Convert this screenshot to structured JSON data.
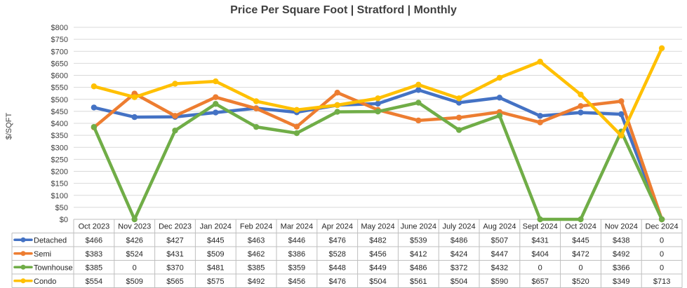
{
  "chart_data": {
    "type": "line",
    "title": "Price Per Square Foot | Stratford | Monthly",
    "ylabel": "$/SQFT",
    "xlabel": "",
    "ylim": [
      0,
      800
    ],
    "y_ticks": [
      "$0",
      "$50",
      "$100",
      "$150",
      "$200",
      "$250",
      "$300",
      "$350",
      "$400",
      "$450",
      "$500",
      "$550",
      "$600",
      "$650",
      "$700",
      "$750",
      "$800"
    ],
    "categories": [
      "Oct 2023",
      "Nov 2023",
      "Dec 2023",
      "Jan 2024",
      "Feb 2024",
      "Mar 2024",
      "Apr 2024",
      "May 2024",
      "June 2024",
      "July 2024",
      "Aug 2024",
      "Sept 2024",
      "Oct 2024",
      "Nov 2024",
      "Dec 2024"
    ],
    "grid": true,
    "legend": "data-table",
    "series": [
      {
        "name": "Detached",
        "color": "#4472C4",
        "values": [
          466,
          426,
          427,
          445,
          463,
          446,
          476,
          482,
          539,
          486,
          507,
          431,
          445,
          438,
          0
        ],
        "labels": [
          "$466",
          "$426",
          "$427",
          "$445",
          "$463",
          "$446",
          "$476",
          "$482",
          "$539",
          "$486",
          "$507",
          "$431",
          "$445",
          "$438",
          "0"
        ]
      },
      {
        "name": "Semi",
        "color": "#ED7D31",
        "values": [
          383,
          524,
          431,
          509,
          462,
          386,
          528,
          456,
          412,
          424,
          447,
          404,
          472,
          492,
          0
        ],
        "labels": [
          "$383",
          "$524",
          "$431",
          "$509",
          "$462",
          "$386",
          "$528",
          "$456",
          "$412",
          "$424",
          "$447",
          "$404",
          "$472",
          "$492",
          "0"
        ]
      },
      {
        "name": "Townhouse",
        "color": "#70AD47",
        "values": [
          385,
          0,
          370,
          481,
          385,
          359,
          448,
          449,
          486,
          372,
          432,
          0,
          0,
          366,
          0
        ],
        "labels": [
          "$385",
          "0",
          "$370",
          "$481",
          "$385",
          "$359",
          "$448",
          "$449",
          "$486",
          "$372",
          "$432",
          "0",
          "0",
          "$366",
          "0"
        ]
      },
      {
        "name": "Condo",
        "color": "#FFC000",
        "values": [
          554,
          509,
          565,
          575,
          492,
          456,
          476,
          504,
          561,
          504,
          590,
          657,
          520,
          349,
          713
        ],
        "labels": [
          "$554",
          "$509",
          "$565",
          "$575",
          "$492",
          "$456",
          "$476",
          "$504",
          "$561",
          "$504",
          "$590",
          "$657",
          "$520",
          "$349",
          "$713"
        ]
      }
    ]
  }
}
